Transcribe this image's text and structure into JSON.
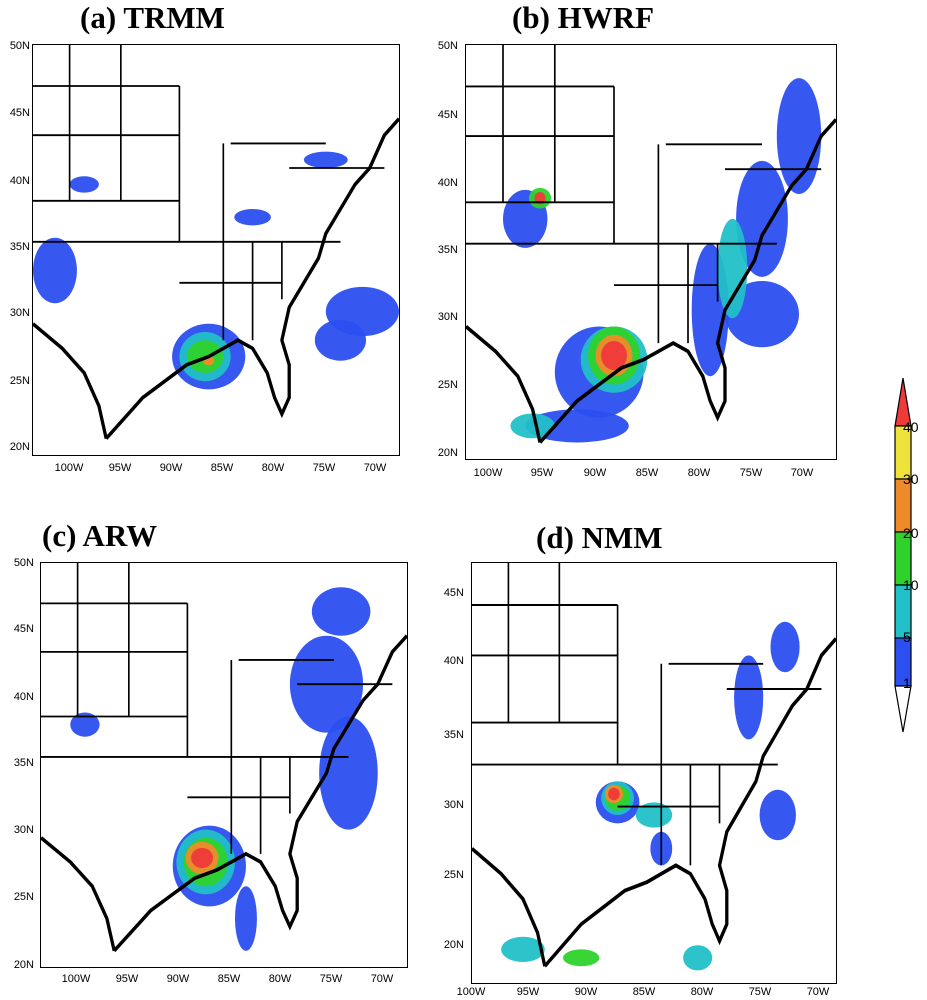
{
  "panels": [
    {
      "title": "(a)  TRMM",
      "lats": [
        "50N",
        "45N",
        "40N",
        "35N",
        "30N",
        "25N",
        "20N"
      ],
      "lons": [
        "100W",
        "95W",
        "90W",
        "85W",
        "80W",
        "75W",
        "70W"
      ]
    },
    {
      "title": "(b) HWRF",
      "lats": [
        "50N",
        "45N",
        "40N",
        "35N",
        "30N",
        "25N",
        "20N"
      ],
      "lons": [
        "100W",
        "95W",
        "90W",
        "85W",
        "80W",
        "75W",
        "70W"
      ]
    },
    {
      "title": "(c) ARW",
      "lats": [
        "50N",
        "45N",
        "40N",
        "35N",
        "30N",
        "25N",
        "20N"
      ],
      "lons": [
        "100W",
        "95W",
        "90W",
        "85W",
        "80W",
        "75W",
        "70W"
      ]
    },
    {
      "title": "(d) NMM",
      "lats": [
        "45N",
        "40N",
        "35N",
        "30N",
        "25N",
        "20N"
      ],
      "lons": [
        "100W",
        "95W",
        "90W",
        "85W",
        "80W",
        "75W",
        "70W"
      ]
    }
  ],
  "colorbar": {
    "levels": [
      "40",
      "30",
      "20",
      "10",
      "5",
      "1"
    ],
    "colors": {
      "1_5": "#2b4ff0",
      "5_10": "#22c0c8",
      "10_20": "#2ed22b",
      "20_30": "#ef8a2a",
      "30_40": "#efe23a",
      "over_40": "#ef3a3a"
    }
  }
}
